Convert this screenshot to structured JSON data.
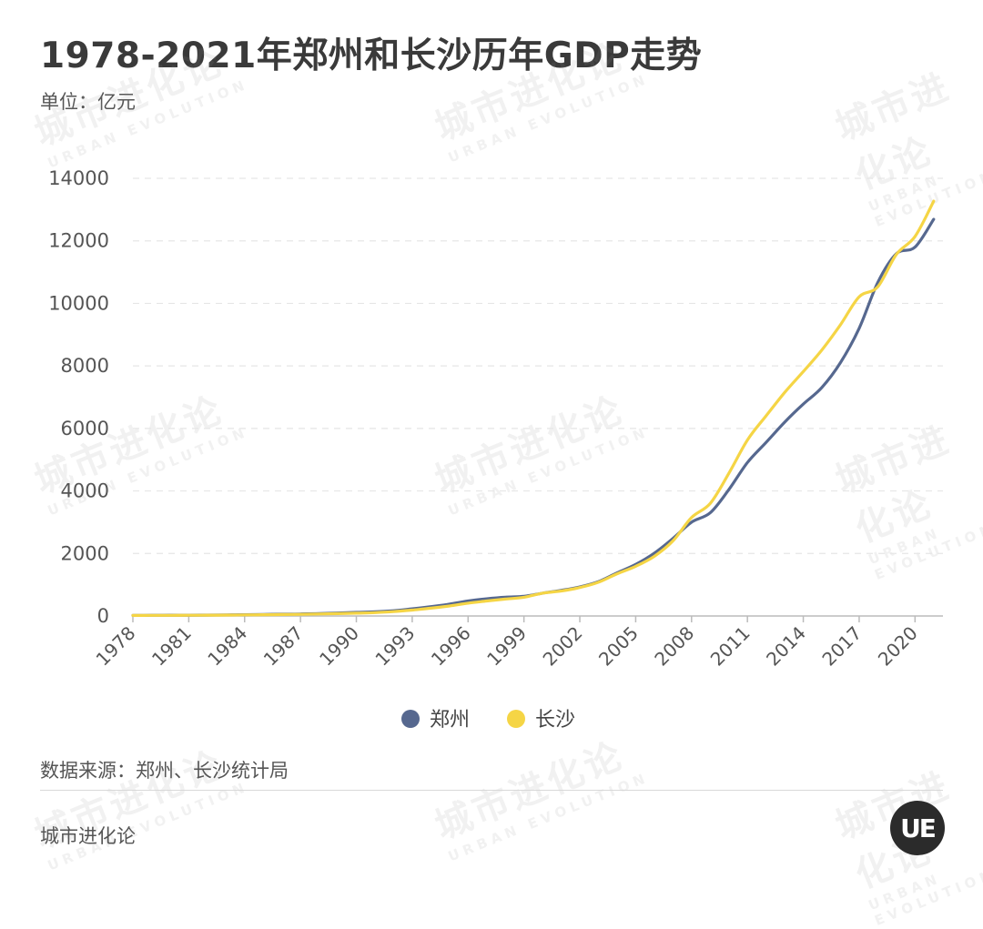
{
  "header": {
    "title": "1978-2021年郑州和长沙历年GDP走势",
    "unit": "单位：亿元"
  },
  "footer": {
    "source": "数据来源：郑州、长沙统计局",
    "brand": "城市进化论"
  },
  "watermark": {
    "main": "城市进化论",
    "sub": "URBAN EVOLUTION"
  },
  "logo": {
    "text": "UE"
  },
  "colors": {
    "zhengzhou": "#56688f",
    "changsha": "#f5d545",
    "grid": "#e6e6e6",
    "axis": "#bbbbbb"
  },
  "chart_data": {
    "type": "line",
    "title": "1978-2021年郑州和长沙历年GDP走势",
    "ylabel": "单位：亿元",
    "xlabel": "",
    "ylim": [
      0,
      14000
    ],
    "yticks": [
      0,
      2000,
      4000,
      6000,
      8000,
      10000,
      12000,
      14000
    ],
    "xtick_labels": [
      "1978",
      "1981",
      "1984",
      "1987",
      "1990",
      "1993",
      "1996",
      "1999",
      "2002",
      "2005",
      "2008",
      "2011",
      "2014",
      "2017",
      "2020"
    ],
    "grid": true,
    "legend_position": "bottom-center",
    "x": [
      1978,
      1979,
      1980,
      1981,
      1982,
      1983,
      1984,
      1985,
      1986,
      1987,
      1988,
      1989,
      1990,
      1991,
      1992,
      1993,
      1994,
      1995,
      1996,
      1997,
      1998,
      1999,
      2000,
      2001,
      2002,
      2003,
      2004,
      2005,
      2006,
      2007,
      2008,
      2009,
      2010,
      2011,
      2012,
      2013,
      2014,
      2015,
      2016,
      2017,
      2018,
      2019,
      2020,
      2021
    ],
    "series": [
      {
        "name": "郑州",
        "values": [
          20,
          22,
          25,
          27,
          30,
          35,
          42,
          50,
          57,
          65,
          80,
          95,
          116,
          135,
          170,
          230,
          300,
          380,
          480,
          550,
          600,
          630,
          730,
          820,
          930,
          1100,
          1380,
          1650,
          2010,
          2480,
          3000,
          3300,
          4040,
          4910,
          5550,
          6200,
          6780,
          7310,
          8110,
          9200,
          10670,
          11590,
          11800,
          12690
        ]
      },
      {
        "name": "长沙",
        "values": [
          17,
          19,
          21,
          23,
          25,
          29,
          34,
          40,
          46,
          53,
          64,
          76,
          90,
          108,
          140,
          190,
          250,
          320,
          410,
          480,
          540,
          600,
          730,
          800,
          910,
          1080,
          1350,
          1590,
          1910,
          2400,
          3150,
          3600,
          4560,
          5630,
          6400,
          7150,
          7820,
          8510,
          9320,
          10210,
          10530,
          11570,
          12140,
          13270
        ]
      }
    ]
  }
}
